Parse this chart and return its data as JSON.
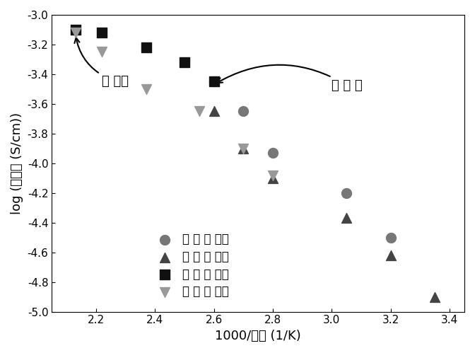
{
  "round1_up_x": [
    2.6,
    2.7,
    2.8,
    3.05,
    3.2
  ],
  "round1_up_y": [
    -3.45,
    -3.65,
    -3.93,
    -4.2,
    -4.5
  ],
  "round1_down_x": [
    2.6,
    2.7,
    2.8,
    3.05,
    3.2,
    3.35
  ],
  "round1_down_y": [
    -3.65,
    -3.9,
    -4.1,
    -4.37,
    -4.62,
    -4.9
  ],
  "round2_up_x": [
    2.13,
    2.22,
    2.37,
    2.5,
    2.6
  ],
  "round2_up_y": [
    -3.1,
    -3.12,
    -3.22,
    -3.32,
    -3.45
  ],
  "round2_down_x": [
    2.13,
    2.22,
    2.37,
    2.55,
    2.7,
    2.8
  ],
  "round2_down_y": [
    -3.12,
    -3.25,
    -3.5,
    -3.65,
    -3.9,
    -4.08
  ],
  "xlabel": "1000/温度 (1/K)",
  "ylabel": "log (导电率 (S/cm))",
  "xlim": [
    2.05,
    3.45
  ],
  "ylim": [
    -5.0,
    -3.0
  ],
  "xticks": [
    2.2,
    2.4,
    2.6,
    2.8,
    3.0,
    3.2,
    3.4
  ],
  "yticks": [
    -5.0,
    -4.8,
    -4.6,
    -4.4,
    -4.2,
    -4.0,
    -3.8,
    -3.6,
    -3.4,
    -3.2,
    -3.0
  ],
  "legend_labels": [
    "第 一 轮 升温",
    "第 一 轮 降温",
    "第 二 轮 升温",
    "第 二 轮 降温"
  ],
  "color_round1_up": "#777777",
  "color_round1_down": "#444444",
  "color_round2_up": "#111111",
  "color_round2_down": "#999999",
  "ann_r2_text": "第 二轮",
  "ann_r1_text": "第 一 轮",
  "label_fontsize": 13,
  "tick_fontsize": 11,
  "legend_fontsize": 12,
  "ann_fontsize": 13,
  "marker_size": 100
}
